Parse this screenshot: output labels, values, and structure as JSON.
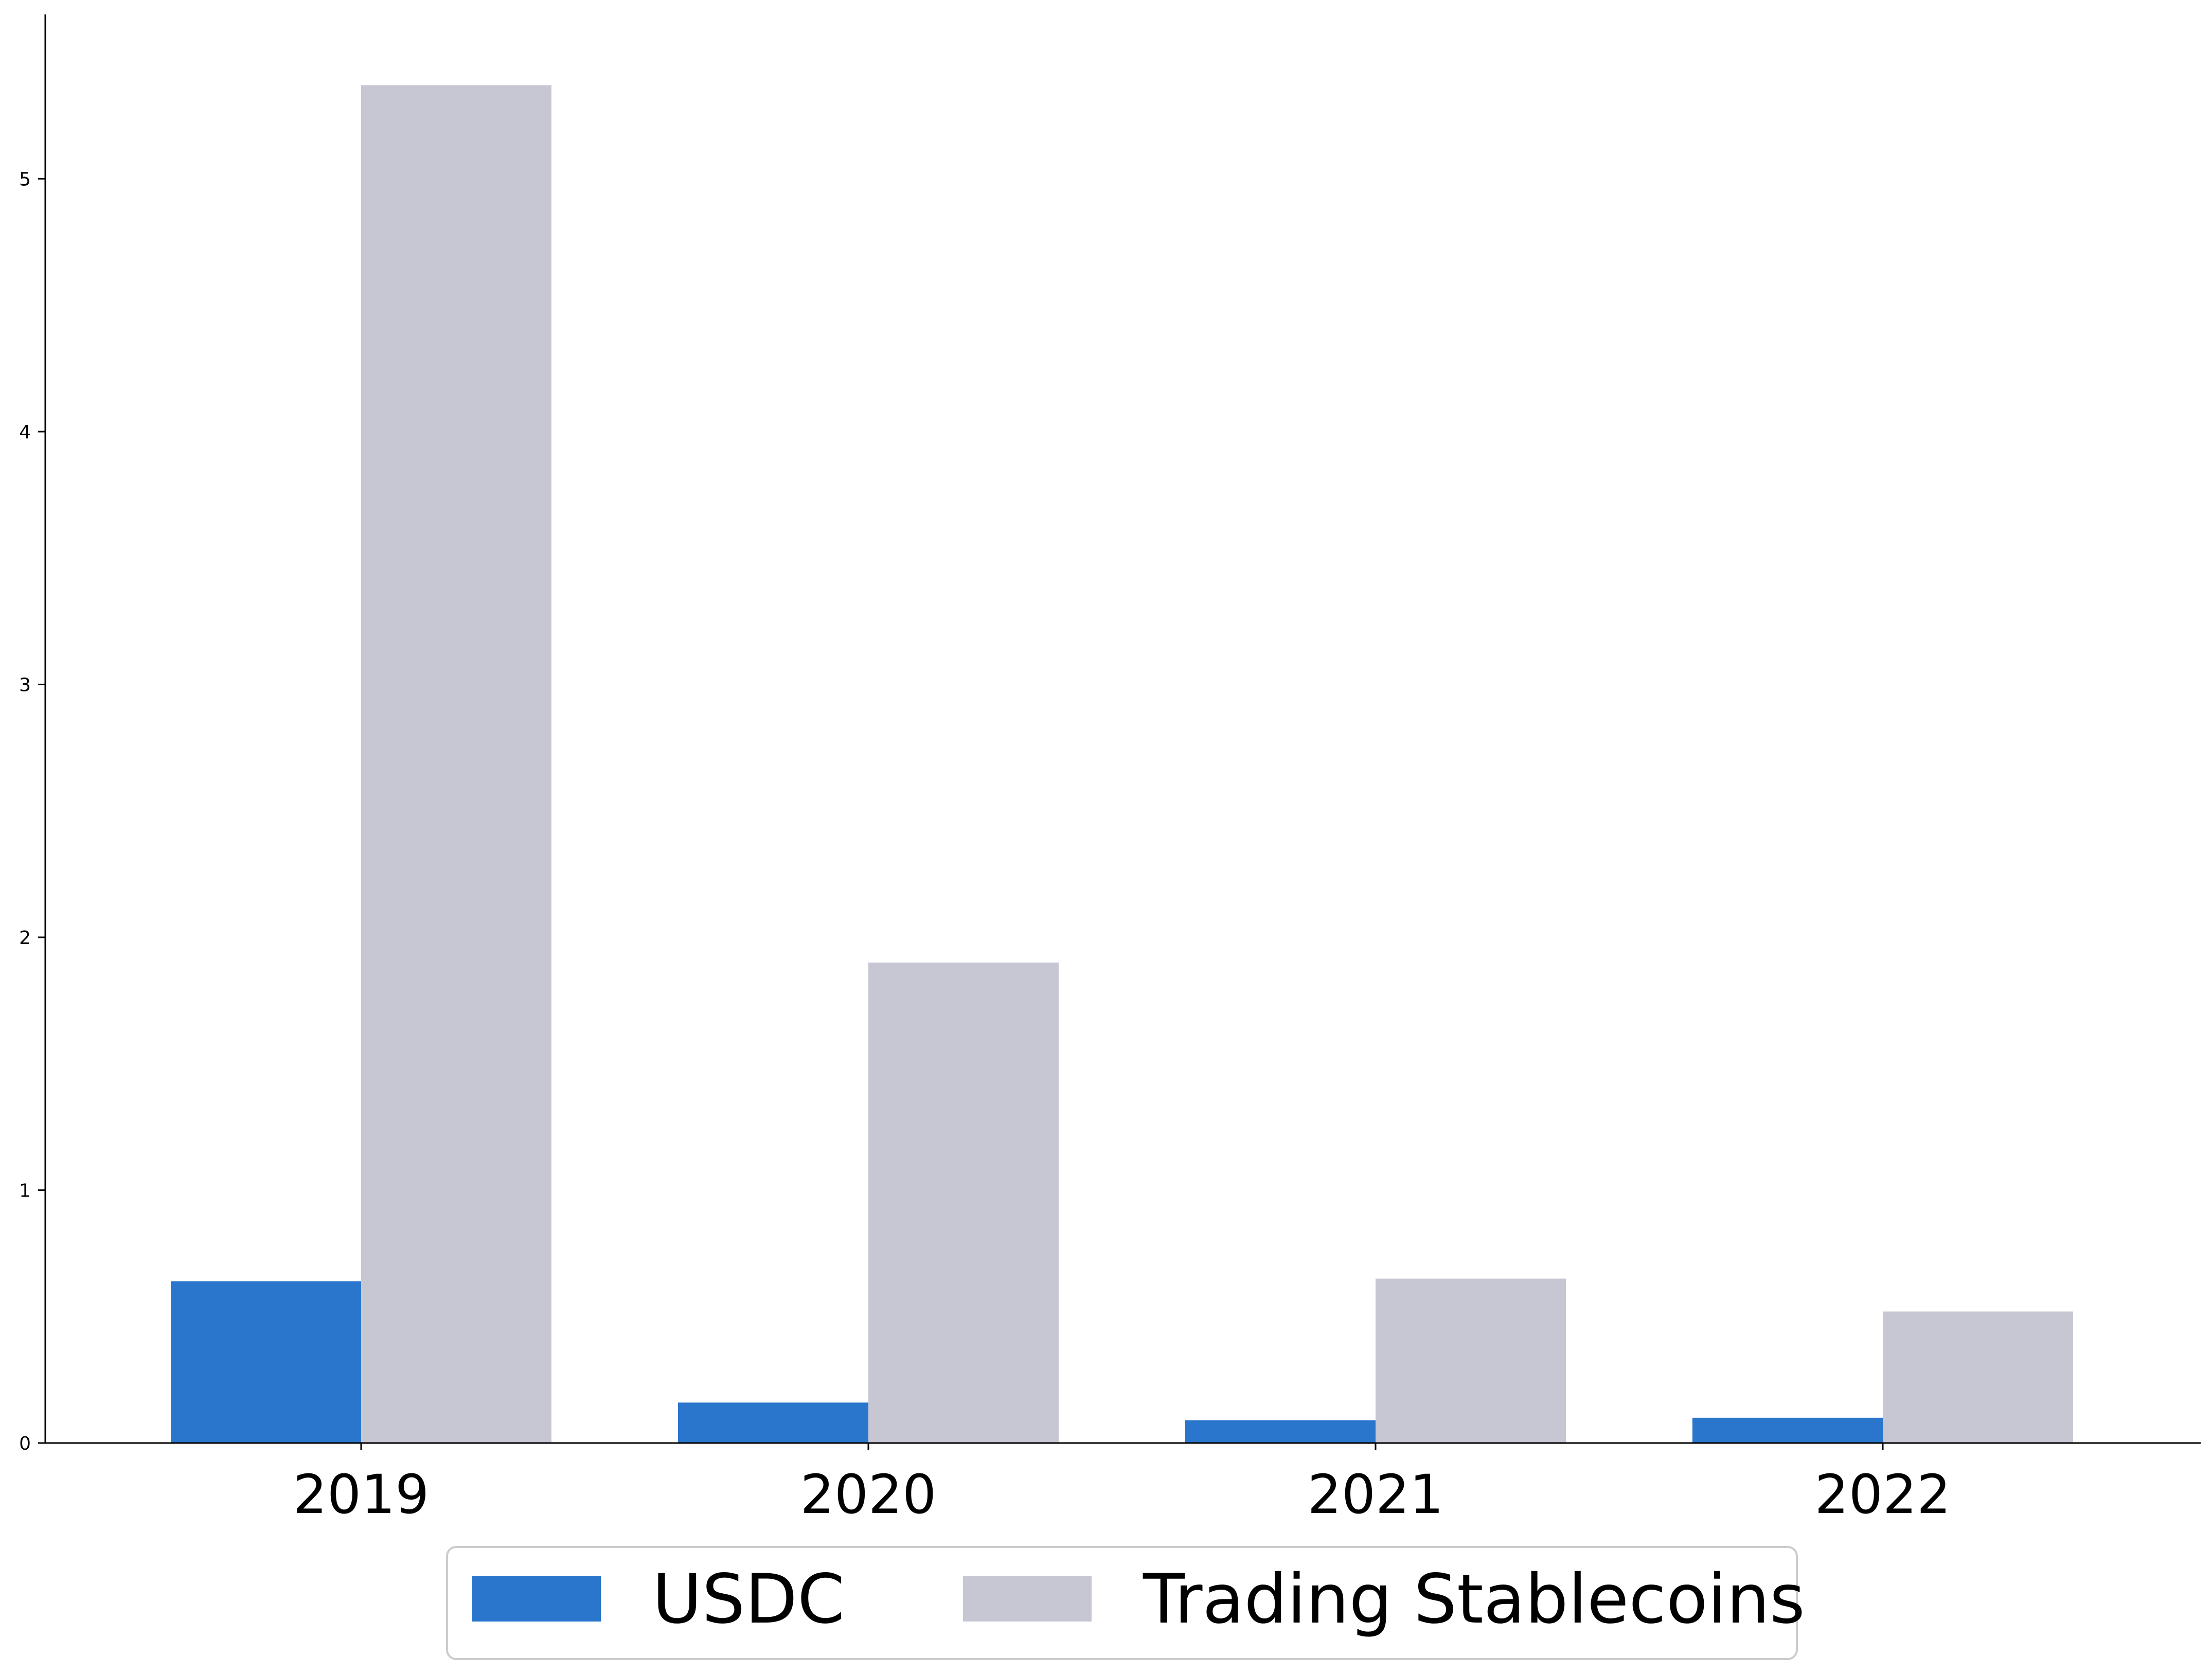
{
  "chart_data": {
    "type": "bar",
    "title": "",
    "xlabel": "",
    "ylabel": "",
    "categories": [
      "2019",
      "2020",
      "2021",
      "2022"
    ],
    "series": [
      {
        "name": "USDC",
        "color": "#2976cc",
        "values": [
          0.64,
          0.16,
          0.09,
          0.1
        ]
      },
      {
        "name": "Trading Stablecoins",
        "color": "#c7c6d3",
        "values": [
          5.37,
          1.9,
          0.65,
          0.52
        ]
      }
    ],
    "ylim": [
      0,
      5.65
    ],
    "yticks": [
      "0",
      "1",
      "2",
      "3",
      "4",
      "5"
    ],
    "grid": false,
    "legend_position": "bottom-center"
  }
}
